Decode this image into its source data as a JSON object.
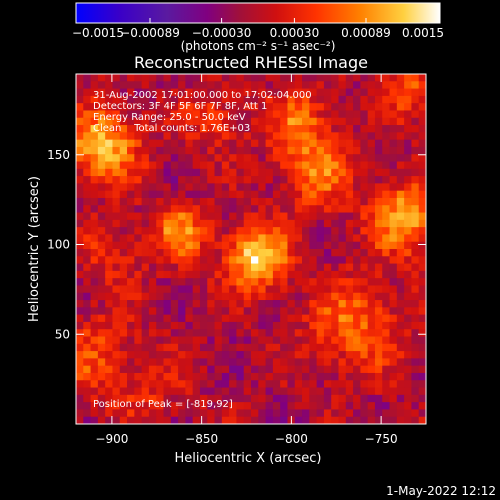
{
  "chart_data": {
    "type": "heatmap",
    "title": "Reconstructed RHESSI Image",
    "xlabel": "Heliocentric X (arcsec)",
    "ylabel": "Heliocentric Y (arcsec)",
    "xlim": [
      -920,
      -725
    ],
    "ylim": [
      0,
      195
    ],
    "x_ticks": [
      {
        "value": -900,
        "label": "−900"
      },
      {
        "value": -850,
        "label": "−850"
      },
      {
        "value": -800,
        "label": "−800"
      },
      {
        "value": -750,
        "label": "−750"
      }
    ],
    "y_ticks": [
      {
        "value": 50,
        "label": "50"
      },
      {
        "value": 100,
        "label": "100"
      },
      {
        "value": 150,
        "label": "150"
      }
    ],
    "colorbar": {
      "vmin": -0.0015,
      "vmax": 0.0015,
      "ticks": [
        {
          "value": -0.0015,
          "label": "−0.0015"
        },
        {
          "value": -0.00089,
          "label": "−0.00089"
        },
        {
          "value": -0.0003,
          "label": "−0.00030"
        },
        {
          "value": 0.0003,
          "label": "0.00030"
        },
        {
          "value": 0.00089,
          "label": "0.00089"
        },
        {
          "value": 0.0015,
          "label": "0.0015"
        }
      ],
      "unit_label": "(photons cm⁻² s⁻¹ asec⁻²)",
      "colors": [
        "#0000ff",
        "#3a00c8",
        "#5a1aa0",
        "#800080",
        "#a0103a",
        "#d01010",
        "#ff3300",
        "#ff8000",
        "#ffd040",
        "#ffffff"
      ]
    },
    "annotations": [
      "31-Aug-2002 17:01:00.000 to 17:02:04.000",
      "Detectors: 3F 4F 5F 6F 7F 8F, Att 1",
      "Energy Range: 25.0 - 50.0 keV",
      "Clean    Total counts: 1.76E+03"
    ],
    "peak_label": "Position of Peak = [-819,92]",
    "peak": {
      "x": -819,
      "y": 92
    },
    "date_stamp": "1-May-2022 12:12",
    "hotspots": [
      {
        "x": -819,
        "y": 92,
        "intensity": 0.00145,
        "sigma": 12
      },
      {
        "x": -905,
        "y": 155,
        "intensity": 0.00125,
        "sigma": 14
      },
      {
        "x": -862,
        "y": 107,
        "intensity": 0.00095,
        "sigma": 11
      },
      {
        "x": -736,
        "y": 115,
        "intensity": 0.00115,
        "sigma": 14
      },
      {
        "x": -787,
        "y": 140,
        "intensity": 0.00085,
        "sigma": 14
      },
      {
        "x": -795,
        "y": 168,
        "intensity": 0.00075,
        "sigma": 12
      },
      {
        "x": -765,
        "y": 55,
        "intensity": 0.0008,
        "sigma": 18
      },
      {
        "x": -732,
        "y": 185,
        "intensity": 0.00065,
        "sigma": 12
      },
      {
        "x": -910,
        "y": 38,
        "intensity": 0.0006,
        "sigma": 16
      },
      {
        "x": -900,
        "y": 95,
        "intensity": 0.00045,
        "sigma": 12
      },
      {
        "x": -842,
        "y": 170,
        "intensity": 0.00055,
        "sigma": 12
      },
      {
        "x": -878,
        "y": 18,
        "intensity": 0.00035,
        "sigma": 14
      }
    ]
  }
}
